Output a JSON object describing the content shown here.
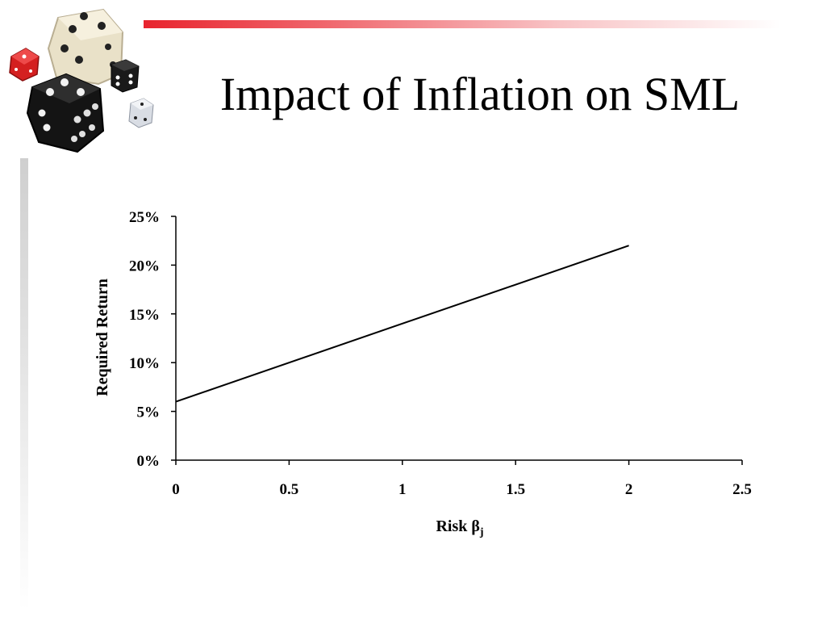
{
  "slide": {
    "title": "Impact of Inflation on SML",
    "decoration_icon": "dice-cluster-icon"
  },
  "colors": {
    "accent_bar": "#e8242e",
    "line": "#000000",
    "side_bar": "#cfcfcf"
  },
  "chart_data": {
    "type": "line",
    "title": "",
    "xlabel_main": "Risk ",
    "xlabel_symbol": "β",
    "xlabel_subscript": "j",
    "ylabel": "Required Return",
    "xlim": [
      0,
      2.5
    ],
    "ylim": [
      0,
      0.25
    ],
    "x_ticks": [
      0,
      0.5,
      1,
      1.5,
      2,
      2.5
    ],
    "x_tick_labels": [
      "0",
      "0.5",
      "1",
      "1.5",
      "2",
      "2.5"
    ],
    "y_ticks": [
      0,
      0.05,
      0.1,
      0.15,
      0.2,
      0.25
    ],
    "y_tick_labels": [
      "0%",
      "5%",
      "10%",
      "15%",
      "20%",
      "25%"
    ],
    "grid": false,
    "legend": "none",
    "series": [
      {
        "x": [
          0,
          2
        ],
        "y": [
          0.06,
          0.22
        ]
      }
    ]
  }
}
